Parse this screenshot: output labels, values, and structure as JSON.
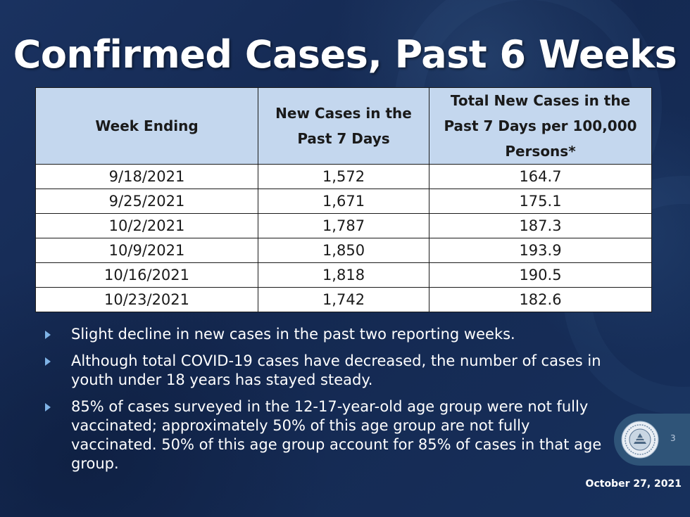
{
  "title": "Confirmed Cases, Past 6 Weeks",
  "table": {
    "headers": [
      "Week Ending",
      "New Cases in the Past 7 Days",
      "Total New Cases in the Past 7 Days per 100,000 Persons*"
    ],
    "rows": [
      [
        "9/18/2021",
        "1,572",
        "164.7"
      ],
      [
        "9/25/2021",
        "1,671",
        "175.1"
      ],
      [
        "10/2/2021",
        "1,787",
        "187.3"
      ],
      [
        "10/9/2021",
        "1,850",
        "193.9"
      ],
      [
        "10/16/2021",
        "1,818",
        "190.5"
      ],
      [
        "10/23/2021",
        "1,742",
        "182.6"
      ]
    ]
  },
  "bullets": [
    "Slight decline in new cases in the past two reporting weeks.",
    "Although total COVID-19 cases have decreased, the number of cases in youth under 18 years has stayed steady.",
    "85% of cases surveyed in the 12-17-year-old age group were not fully vaccinated; approximately 50% of this age group are not fully vaccinated. 50% of this age group account for 85% of cases in that age group."
  ],
  "footer": {
    "page_number": "3",
    "date": "October 27, 2021"
  },
  "colors": {
    "background": "#152a52",
    "header_fill": "#c4d7ee",
    "bullet_marker": "#7fb3e6",
    "seal_tab": "#2f5478"
  },
  "icons": {
    "bullet": "triangle-right-icon",
    "seal": "county-seal-logo"
  }
}
